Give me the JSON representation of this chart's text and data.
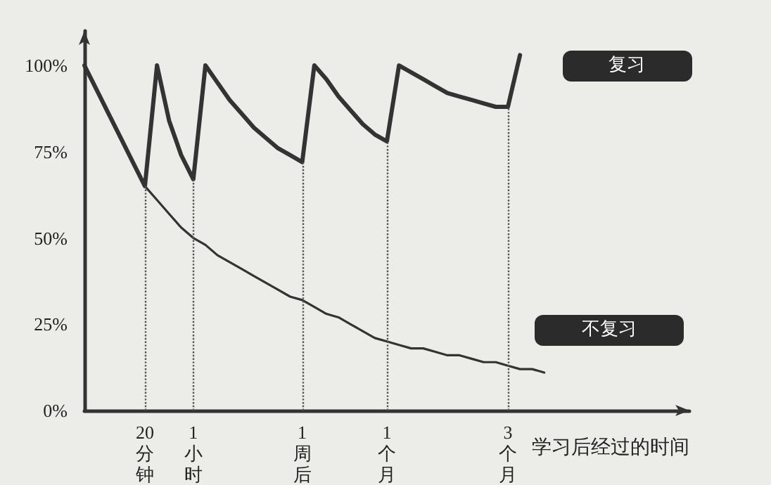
{
  "chart_data": {
    "type": "line",
    "xlabel": "学习后经过的时间",
    "ylim": [
      0,
      110
    ],
    "categories": [
      null,
      null,
      null,
      null,
      null,
      "20分钟",
      null,
      null,
      null,
      "1小时",
      null,
      null,
      null,
      null,
      null,
      null,
      null,
      null,
      "1周后",
      null,
      null,
      null,
      null,
      null,
      null,
      "1个月",
      null,
      null,
      null,
      null,
      null,
      null,
      null,
      null,
      null,
      "3个月",
      null,
      null,
      null,
      null,
      null,
      null,
      null,
      null,
      null,
      null,
      null,
      null,
      null,
      null,
      null
    ],
    "yticks": [
      {
        "value": 0,
        "label": "0%"
      },
      {
        "value": 25,
        "label": "25%"
      },
      {
        "value": 50,
        "label": "50%"
      },
      {
        "value": 75,
        "label": "75%"
      },
      {
        "value": 100,
        "label": "100%"
      }
    ],
    "series": [
      {
        "name": "复习",
        "color": "#333333",
        "values": [
          100,
          93,
          86,
          79,
          72,
          65,
          100,
          84,
          74,
          67,
          100,
          95,
          90,
          86,
          82,
          79,
          76,
          74,
          72,
          100,
          96,
          91,
          87,
          83,
          80,
          78,
          100,
          98,
          96,
          94,
          92,
          91,
          90,
          89,
          88,
          88,
          103,
          null,
          null,
          null,
          null,
          null,
          null,
          null,
          null,
          null,
          null,
          null,
          null,
          null,
          null
        ]
      },
      {
        "name": "不复习",
        "color": "#333333",
        "values": [
          null,
          null,
          null,
          null,
          null,
          65,
          61,
          57,
          53,
          50,
          48,
          45,
          43,
          41,
          39,
          37,
          35,
          33,
          32,
          30,
          28,
          27,
          25,
          23,
          21,
          20,
          19,
          18,
          18,
          17,
          16,
          16,
          15,
          14,
          14,
          13,
          12,
          12,
          11,
          null,
          null,
          null,
          null,
          null,
          null,
          null,
          null,
          null,
          null,
          null,
          null
        ]
      }
    ],
    "ref_lines": [
      {
        "axis": "x",
        "value": "20分钟",
        "color": "#555555",
        "line_style": "dotted"
      },
      {
        "axis": "x",
        "value": "1小时",
        "color": "#555555",
        "line_style": "dotted"
      },
      {
        "axis": "x",
        "value": "1周后",
        "color": "#555555",
        "line_style": "dotted"
      },
      {
        "axis": "x",
        "value": "1个月",
        "color": "#555555",
        "line_style": "dotted"
      },
      {
        "axis": "x",
        "value": "3个月",
        "color": "#555555",
        "line_style": "dotted"
      }
    ],
    "grid": false,
    "legend": false,
    "marker": "none",
    "line_style": "solid"
  }
}
